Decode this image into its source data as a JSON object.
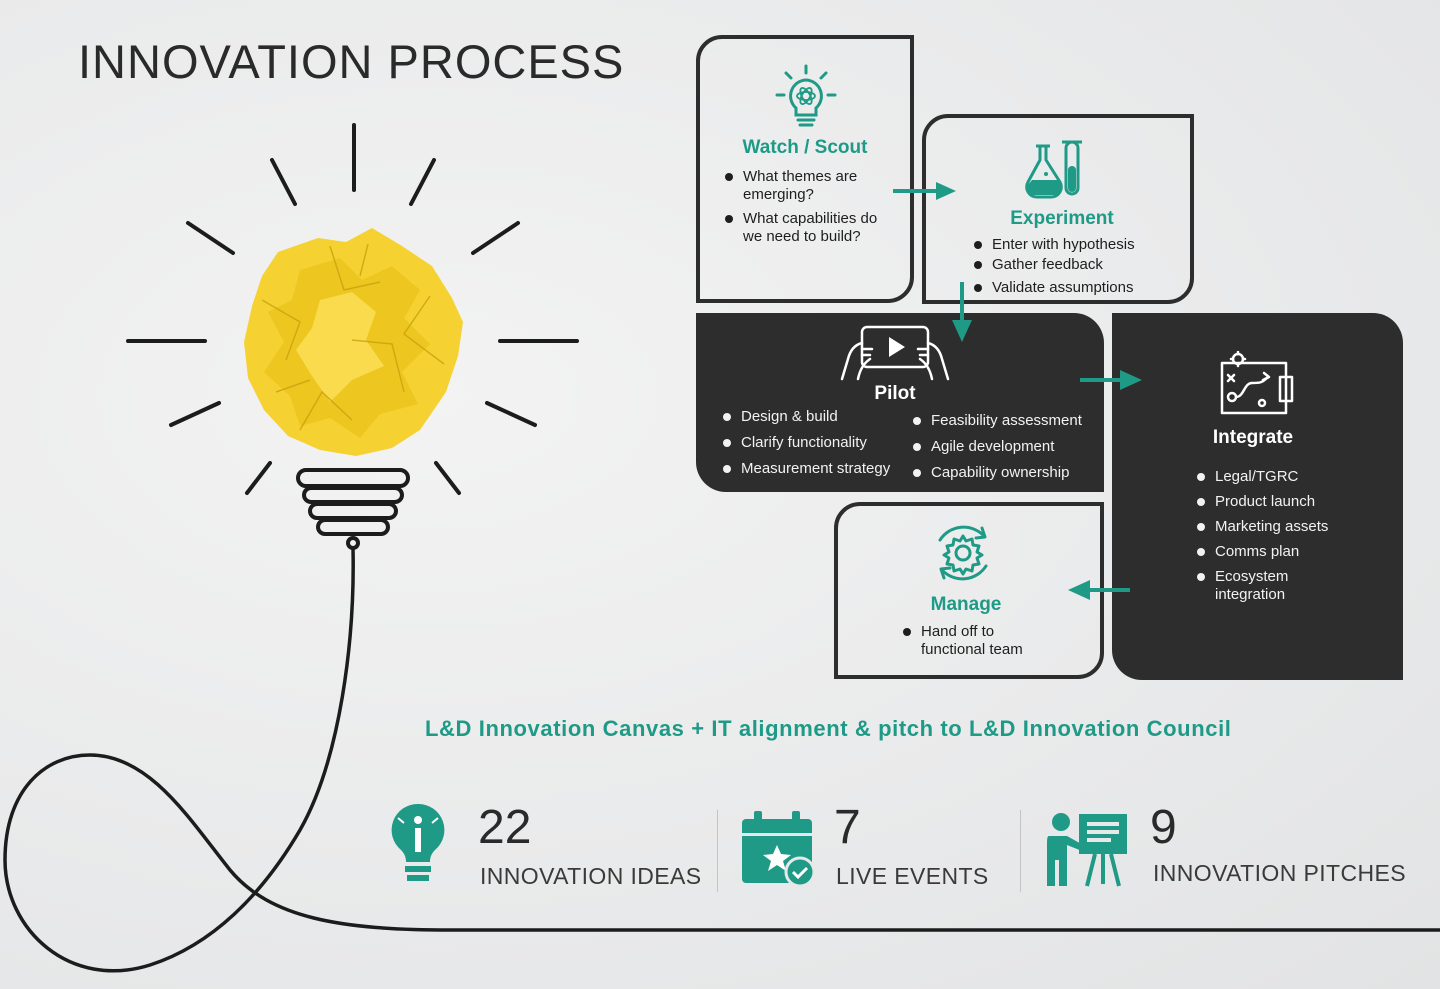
{
  "title": "INNOVATION PROCESS",
  "steps": {
    "watch": {
      "title": "Watch / Scout",
      "bullets": [
        "What themes are emerging?",
        "What capabilities do we need to build?"
      ],
      "icon": "lightbulb-atom-icon"
    },
    "experiment": {
      "title": "Experiment",
      "bullets": [
        "Enter with hypothesis",
        "Gather feedback",
        "Validate assumptions"
      ],
      "icon": "lab-flask-icon"
    },
    "pilot": {
      "title": "Pilot",
      "bullets_left": [
        "Design & build",
        "Clarify functionality",
        "Measurement strategy"
      ],
      "bullets_right": [
        "Feasibility assessment",
        "Agile development",
        "Capability ownership"
      ],
      "icon": "tablet-play-icon"
    },
    "integrate": {
      "title": "Integrate",
      "bullets": [
        "Legal/TGRC",
        "Product launch",
        "Marketing assets",
        "Comms plan",
        "Ecosystem integration"
      ],
      "icon": "strategy-board-icon"
    },
    "manage": {
      "title": "Manage",
      "bullets": [
        "Hand off to functional team"
      ],
      "icon": "gear-cycle-icon"
    }
  },
  "canvas_line": "L&D Innovation Canvas + IT alignment & pitch to L&D Innovation Council",
  "stats": [
    {
      "value": "22",
      "label": "INNOVATION IDEAS",
      "icon": "idea-bulb-icon"
    },
    {
      "value": "7",
      "label": "LIVE EVENTS",
      "icon": "calendar-star-icon"
    },
    {
      "value": "9",
      "label": "INNOVATION PITCHES",
      "icon": "presenter-board-icon"
    }
  ],
  "colors": {
    "accent": "#1f9a87",
    "dark": "#2d2d2d",
    "paper": "#f5d232"
  }
}
